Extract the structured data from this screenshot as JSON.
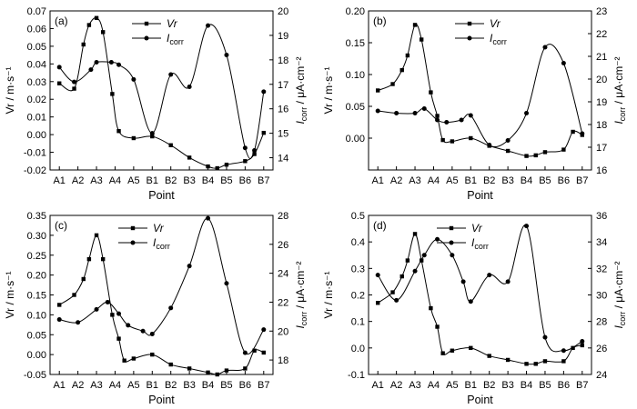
{
  "figure": {
    "categories": [
      "A1",
      "A2",
      "A3",
      "A4",
      "A5",
      "B1",
      "B2",
      "B3",
      "B4",
      "B5",
      "B6",
      "B7"
    ],
    "xlabel": "Point",
    "legend_vr": "Vr",
    "legend_icorr_main": "I",
    "legend_icorr_sub": "corr",
    "ylabel_left": "Vr / m·s⁻¹",
    "ylabel_right": "I",
    "ylabel_right_sub": "corr",
    "ylabel_right_unit": " / μA·cm⁻²",
    "line_color": "#000000"
  },
  "chart_data": [
    {
      "type": "line",
      "panel_label": "(a)",
      "x_vr": [
        0,
        0.8,
        1.3,
        1.6,
        2.0,
        2.35,
        2.85,
        3.2,
        4.0,
        5.0,
        6.0,
        7.0,
        8.0,
        8.5,
        9.0,
        10.0,
        10.5,
        11.0
      ],
      "vr": [
        0.029,
        0.026,
        0.051,
        0.062,
        0.066,
        0.058,
        0.023,
        0.002,
        -0.002,
        -0.001,
        -0.006,
        -0.013,
        -0.018,
        -0.019,
        -0.017,
        -0.015,
        -0.011,
        0.001
      ],
      "x_icorr": [
        0,
        0.8,
        1.7,
        2.0,
        2.8,
        3.2,
        4.0,
        5.0,
        6.0,
        7.0,
        8.0,
        9.0,
        10.0,
        10.5,
        11.0
      ],
      "icorr": [
        17.7,
        17.1,
        17.6,
        17.9,
        17.9,
        17.8,
        17.2,
        15.0,
        17.4,
        16.9,
        19.4,
        18.2,
        14.4,
        14.3,
        16.7
      ],
      "ylim_left": [
        -0.02,
        0.07
      ],
      "yticks_left": [
        "-0.02",
        "-0.01",
        "0.00",
        "0.01",
        "0.02",
        "0.03",
        "0.04",
        "0.05",
        "0.06",
        "0.07"
      ],
      "ylim_right": [
        13.5,
        20.0
      ],
      "yticks_right": [
        "14",
        "15",
        "16",
        "17",
        "18",
        "19",
        "20"
      ]
    },
    {
      "type": "line",
      "panel_label": "(b)",
      "x_vr": [
        0,
        0.8,
        1.3,
        1.6,
        2.0,
        2.35,
        2.85,
        3.2,
        3.5,
        4.0,
        5.0,
        6.0,
        7.0,
        8.0,
        8.5,
        9.0,
        10.0,
        10.5,
        11.0
      ],
      "vr": [
        0.075,
        0.085,
        0.107,
        0.13,
        0.178,
        0.155,
        0.072,
        0.035,
        -0.003,
        -0.005,
        0.0,
        -0.012,
        -0.02,
        -0.028,
        -0.027,
        -0.022,
        -0.018,
        0.01,
        0.005
      ],
      "x_icorr": [
        0,
        1.0,
        2.0,
        2.5,
        3.2,
        3.7,
        4.5,
        5.0,
        6.0,
        7.0,
        8.0,
        9.0,
        10.0,
        11.0
      ],
      "icorr": [
        18.6,
        18.5,
        18.5,
        18.7,
        18.2,
        18.1,
        18.2,
        18.4,
        17.1,
        17.3,
        18.5,
        21.4,
        20.7,
        17.6
      ],
      "ylim_left": [
        -0.05,
        0.2
      ],
      "yticks_left": [
        "0.00",
        "0.05",
        "0.10",
        "0.15",
        "0.20"
      ],
      "ylim_right": [
        16.0,
        23.0
      ],
      "yticks_right": [
        "16",
        "17",
        "18",
        "19",
        "20",
        "21",
        "22",
        "23"
      ]
    },
    {
      "type": "line",
      "panel_label": "(c)",
      "x_vr": [
        0,
        0.8,
        1.3,
        1.6,
        2.0,
        2.35,
        2.85,
        3.2,
        3.5,
        4.0,
        5.0,
        6.0,
        7.0,
        8.0,
        8.5,
        9.0,
        10.0,
        10.5,
        11.0
      ],
      "vr": [
        0.125,
        0.15,
        0.19,
        0.24,
        0.3,
        0.24,
        0.1,
        0.04,
        -0.015,
        -0.01,
        0.0,
        -0.025,
        -0.035,
        -0.045,
        -0.05,
        -0.04,
        -0.035,
        0.01,
        0.005
      ],
      "x_icorr": [
        0,
        1.0,
        2.0,
        2.6,
        3.2,
        3.7,
        4.5,
        5.0,
        6.0,
        7.0,
        8.0,
        9.0,
        10.0,
        11.0
      ],
      "icorr": [
        20.8,
        20.6,
        21.5,
        22.0,
        21.2,
        20.4,
        20.0,
        19.8,
        21.6,
        24.5,
        27.8,
        23.3,
        18.5,
        20.1
      ],
      "ylim_left": [
        -0.05,
        0.35
      ],
      "yticks_left": [
        "-0.05",
        "0.00",
        "0.05",
        "0.10",
        "0.15",
        "0.20",
        "0.25",
        "0.30",
        "0.35"
      ],
      "ylim_right": [
        17.0,
        28.0
      ],
      "yticks_right": [
        "18",
        "20",
        "22",
        "24",
        "26",
        "28"
      ]
    },
    {
      "type": "line",
      "panel_label": "(d)",
      "x_vr": [
        0,
        0.8,
        1.3,
        1.6,
        2.0,
        2.35,
        2.85,
        3.2,
        3.5,
        4.0,
        5.0,
        6.0,
        7.0,
        8.0,
        8.5,
        9.0,
        10.0,
        10.5,
        11.0
      ],
      "vr": [
        0.17,
        0.21,
        0.27,
        0.33,
        0.43,
        0.33,
        0.15,
        0.08,
        -0.02,
        -0.01,
        0.0,
        -0.03,
        -0.045,
        -0.06,
        -0.06,
        -0.05,
        -0.05,
        0.0,
        0.01
      ],
      "x_icorr": [
        0,
        1.0,
        2.0,
        2.5,
        3.2,
        4.0,
        4.6,
        5.0,
        6.0,
        7.0,
        8.0,
        9.0,
        10.0,
        11.0
      ],
      "icorr": [
        31.5,
        29.6,
        31.8,
        33.0,
        34.2,
        33.0,
        31.0,
        29.5,
        31.5,
        31.0,
        35.2,
        26.8,
        25.8,
        26.5
      ],
      "ylim_left": [
        -0.1,
        0.5
      ],
      "yticks_left": [
        "-0.1",
        "0.0",
        "0.1",
        "0.2",
        "0.3",
        "0.4",
        "0.5"
      ],
      "ylim_right": [
        24.0,
        36.0
      ],
      "yticks_right": [
        "24",
        "26",
        "28",
        "30",
        "32",
        "34",
        "36"
      ]
    }
  ]
}
